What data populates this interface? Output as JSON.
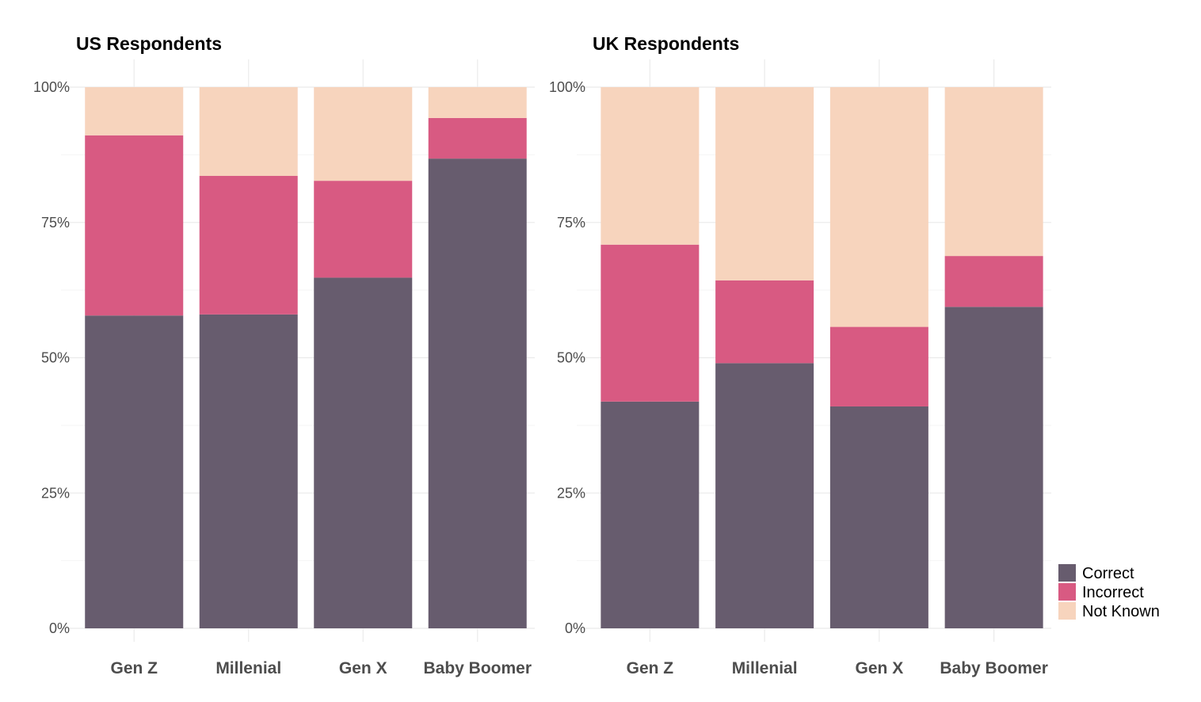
{
  "chart_data": [
    {
      "type": "bar",
      "stacked": true,
      "title": "US Respondents",
      "categories": [
        "Gen Z",
        "Millenial",
        "Gen X",
        "Baby Boomer"
      ],
      "series": [
        {
          "name": "Correct",
          "values": [
            57.8,
            58.0,
            64.8,
            86.8
          ]
        },
        {
          "name": "Incorrect",
          "values": [
            33.3,
            25.6,
            17.9,
            7.5
          ]
        },
        {
          "name": "Not Known",
          "values": [
            8.9,
            16.4,
            17.3,
            5.7
          ]
        }
      ],
      "ylim": [
        0,
        100
      ],
      "yticks": [
        "0%",
        "25%",
        "50%",
        "75%",
        "100%"
      ],
      "xlabel": "",
      "ylabel": "",
      "grid": true
    },
    {
      "type": "bar",
      "stacked": true,
      "title": "UK Respondents",
      "categories": [
        "Gen Z",
        "Millenial",
        "Gen X",
        "Baby Boomer"
      ],
      "series": [
        {
          "name": "Correct",
          "values": [
            41.9,
            49.0,
            41.0,
            59.4
          ]
        },
        {
          "name": "Incorrect",
          "values": [
            29.0,
            15.3,
            14.7,
            9.4
          ]
        },
        {
          "name": "Not Known",
          "values": [
            29.1,
            35.7,
            44.3,
            31.2
          ]
        }
      ],
      "ylim": [
        0,
        100
      ],
      "yticks": [
        "0%",
        "25%",
        "50%",
        "75%",
        "100%"
      ],
      "xlabel": "",
      "ylabel": "",
      "grid": true
    }
  ],
  "legend": {
    "placement": "bottom-right",
    "items": [
      {
        "name": "Correct",
        "color": "#675c6e"
      },
      {
        "name": "Incorrect",
        "color": "#d85a82"
      },
      {
        "name": "Not Known",
        "color": "#f7d4bd"
      }
    ]
  }
}
